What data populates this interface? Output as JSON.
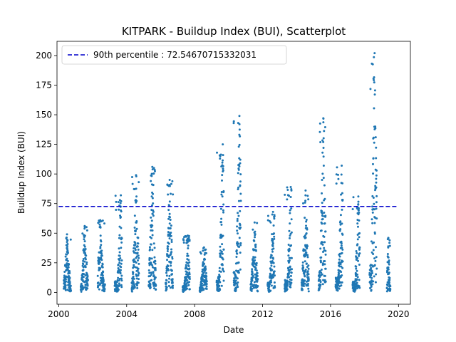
{
  "chart_data": {
    "type": "scatter",
    "title": "KITPARK - Buildup Index (BUI), Scatterplot",
    "xlabel": "Date",
    "ylabel": "Buildup Index (BUI)",
    "xlim": [
      1999.9,
      2020.7
    ],
    "ylim": [
      -10,
      212
    ],
    "xticks": [
      2000,
      2004,
      2008,
      2012,
      2016,
      2020
    ],
    "yticks": [
      0,
      25,
      50,
      75,
      100,
      125,
      150,
      175,
      200
    ],
    "grid": false,
    "legend_position": "top-left",
    "reference_line": {
      "label": "90th percentile : 72.54670715332031",
      "value": 72.54670715332031,
      "x_start": 2000.0,
      "x_end": 2019.9,
      "style": "dashed",
      "color": "#0000cc"
    },
    "series": [
      {
        "color": "#1f77b4",
        "seasons": [
          {
            "year": 2000,
            "start": 2000.3,
            "end": 2000.72,
            "peak": 49,
            "peak_at": 0.45
          },
          {
            "year": 2001,
            "start": 2001.3,
            "end": 2001.72,
            "peak": 56,
            "peak_at": 0.55
          },
          {
            "year": 2002,
            "start": 2002.3,
            "end": 2002.72,
            "peak": 61,
            "peak_at": 0.35
          },
          {
            "year": 2003,
            "start": 2003.3,
            "end": 2003.72,
            "peak": 82,
            "peak_at": 0.85
          },
          {
            "year": 2004,
            "start": 2004.3,
            "end": 2004.72,
            "peak": 99,
            "peak_at": 0.6
          },
          {
            "year": 2005,
            "start": 2005.3,
            "end": 2005.72,
            "peak": 106,
            "peak_at": 0.5
          },
          {
            "year": 2006,
            "start": 2006.3,
            "end": 2006.72,
            "peak": 95,
            "peak_at": 0.55
          },
          {
            "year": 2007,
            "start": 2007.3,
            "end": 2007.72,
            "peak": 48,
            "peak_at": 0.7
          },
          {
            "year": 2008,
            "start": 2008.3,
            "end": 2008.72,
            "peak": 38,
            "peak_at": 0.6
          },
          {
            "year": 2009,
            "start": 2009.3,
            "end": 2009.72,
            "peak": 125,
            "peak_at": 0.85
          },
          {
            "year": 2010,
            "start": 2010.3,
            "end": 2010.72,
            "peak": 149,
            "peak_at": 0.8
          },
          {
            "year": 2011,
            "start": 2011.3,
            "end": 2011.72,
            "peak": 59,
            "peak_at": 0.55
          },
          {
            "year": 2012,
            "start": 2012.3,
            "end": 2012.72,
            "peak": 68,
            "peak_at": 0.75
          },
          {
            "year": 2013,
            "start": 2013.3,
            "end": 2013.72,
            "peak": 89,
            "peak_at": 0.85
          },
          {
            "year": 2014,
            "start": 2014.3,
            "end": 2014.72,
            "peak": 86,
            "peak_at": 0.55
          },
          {
            "year": 2015,
            "start": 2015.3,
            "end": 2015.72,
            "peak": 147,
            "peak_at": 0.65
          },
          {
            "year": 2016,
            "start": 2016.3,
            "end": 2016.72,
            "peak": 107,
            "peak_at": 0.85
          },
          {
            "year": 2017,
            "start": 2017.3,
            "end": 2017.72,
            "peak": 81,
            "peak_at": 0.8
          },
          {
            "year": 2018,
            "start": 2018.3,
            "end": 2018.72,
            "peak": 202,
            "peak_at": 0.7
          },
          {
            "year": 2019,
            "start": 2019.32,
            "end": 2019.52,
            "peak": 46,
            "peak_at": 0.4
          }
        ]
      }
    ]
  }
}
